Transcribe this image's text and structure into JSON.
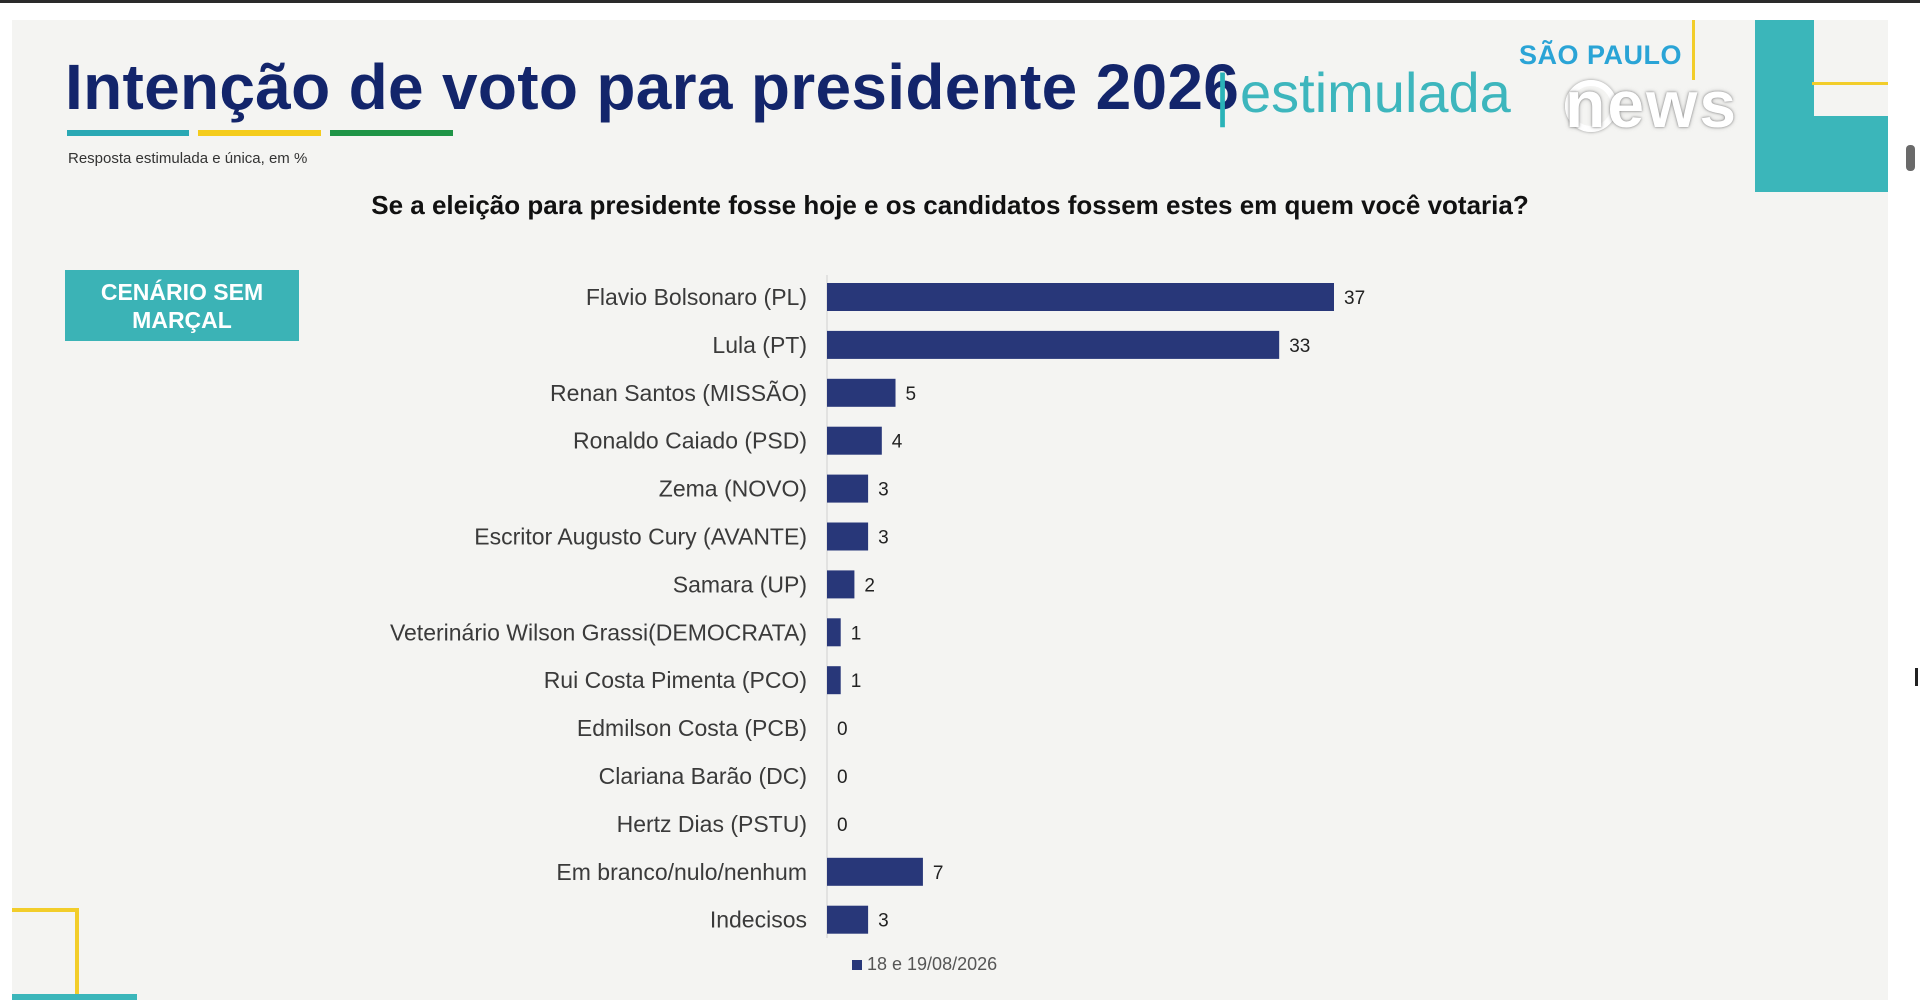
{
  "title": "Intenção de voto para presidente 2026",
  "title_sep": "|",
  "title_sub": "estimulada",
  "subtitle": "Resposta estimulada e única, em %",
  "question": "Se a eleição para presidente fosse hoje e os candidatos fossem estes em quem você votaria?",
  "scenario": "CENÁRIO SEM MARÇAL",
  "brand": {
    "region": "SÃO PAULO",
    "logo_text": "news"
  },
  "colors": {
    "bar": "#283779",
    "title": "#13256b",
    "accent_teal": "#3bb6ba",
    "accent_yellow": "#f2cd2a",
    "accent_green": "#1f9447"
  },
  "chart_data": {
    "type": "bar",
    "orientation": "horizontal",
    "categories": [
      "Flavio Bolsonaro (PL)",
      "Lula (PT)",
      "Renan Santos (MISSÃO)",
      "Ronaldo Caiado (PSD)",
      "Zema (NOVO)",
      "Escritor Augusto Cury (AVANTE)",
      "Samara (UP)",
      "Veterinário Wilson Grassi(DEMOCRATA)",
      "Rui Costa Pimenta (PCO)",
      "Edmilson Costa (PCB)",
      "Clariana Barão (DC)",
      "Hertz Dias (PSTU)",
      "Em branco/nulo/nenhum",
      "Indecisos"
    ],
    "series": [
      {
        "name": "18 e 19/08/2026",
        "values": [
          37,
          33,
          5,
          4,
          3,
          3,
          2,
          1,
          1,
          0,
          0,
          0,
          7,
          3
        ]
      }
    ],
    "xlim": [
      0,
      37
    ],
    "grid": false,
    "legend": "bottom"
  }
}
